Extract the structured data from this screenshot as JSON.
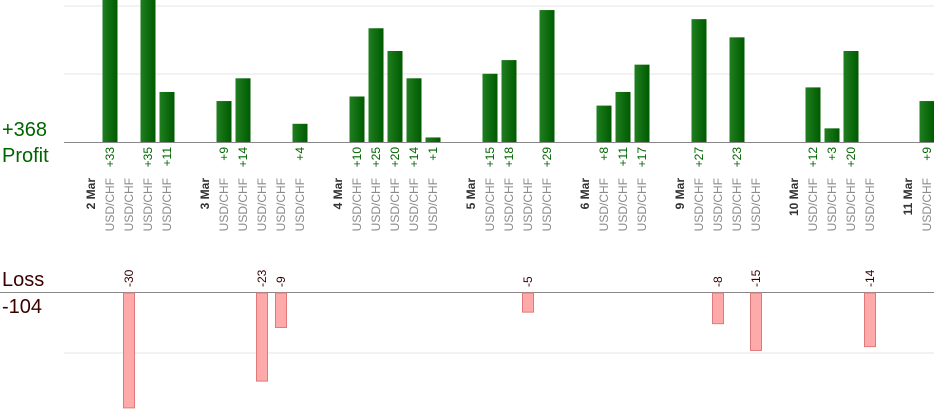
{
  "summary": {
    "profit_total": "+368",
    "profit_label": "Profit",
    "loss_label": "Loss",
    "loss_total": "-104"
  },
  "colors": {
    "profit_bar": "#0b6b0b",
    "profit_text": "#006400",
    "loss_bar": "#ffaaaa",
    "loss_bar_border": "#e07a7a",
    "loss_text": "#3a0000",
    "grid": "#e6e6e6",
    "axis": "#888888",
    "tick": "#8a8a8a",
    "date": "#333333"
  },
  "chart_data": {
    "type": "bar",
    "xlabel": "",
    "ylabel": "",
    "grid": true,
    "legend": "none",
    "profit_ylim": [
      0,
      30
    ],
    "loss_ylim": [
      -30,
      0
    ],
    "categories": [
      {
        "label": "2 Mar",
        "kind": "date"
      },
      {
        "label": "USD/CHF",
        "kind": "trade",
        "value": 33
      },
      {
        "label": "USD/CHF",
        "kind": "trade",
        "value": -30
      },
      {
        "label": "USD/CHF",
        "kind": "trade",
        "value": 35
      },
      {
        "label": "USD/CHF",
        "kind": "trade",
        "value": 11
      },
      {
        "label": "",
        "kind": "gap"
      },
      {
        "label": "3 Mar",
        "kind": "date"
      },
      {
        "label": "USD/CHF",
        "kind": "trade",
        "value": 9
      },
      {
        "label": "USD/CHF",
        "kind": "trade",
        "value": 14
      },
      {
        "label": "USD/CHF",
        "kind": "trade",
        "value": -23
      },
      {
        "label": "USD/CHF",
        "kind": "trade",
        "value": -9
      },
      {
        "label": "USD/CHF",
        "kind": "trade",
        "value": 4
      },
      {
        "label": "",
        "kind": "gap"
      },
      {
        "label": "4 Mar",
        "kind": "date"
      },
      {
        "label": "USD/CHF",
        "kind": "trade",
        "value": 10
      },
      {
        "label": "USD/CHF",
        "kind": "trade",
        "value": 25
      },
      {
        "label": "USD/CHF",
        "kind": "trade",
        "value": 20
      },
      {
        "label": "USD/CHF",
        "kind": "trade",
        "value": 14
      },
      {
        "label": "USD/CHF",
        "kind": "trade",
        "value": 1
      },
      {
        "label": "",
        "kind": "gap"
      },
      {
        "label": "5 Mar",
        "kind": "date"
      },
      {
        "label": "USD/CHF",
        "kind": "trade",
        "value": 15
      },
      {
        "label": "USD/CHF",
        "kind": "trade",
        "value": 18
      },
      {
        "label": "USD/CHF",
        "kind": "trade",
        "value": -5
      },
      {
        "label": "USD/CHF",
        "kind": "trade",
        "value": 29
      },
      {
        "label": "",
        "kind": "gap"
      },
      {
        "label": "6 Mar",
        "kind": "date"
      },
      {
        "label": "USD/CHF",
        "kind": "trade",
        "value": 8
      },
      {
        "label": "USD/CHF",
        "kind": "trade",
        "value": 11
      },
      {
        "label": "USD/CHF",
        "kind": "trade",
        "value": 17
      },
      {
        "label": "",
        "kind": "gap"
      },
      {
        "label": "9 Mar",
        "kind": "date"
      },
      {
        "label": "USD/CHF",
        "kind": "trade",
        "value": 27
      },
      {
        "label": "USD/CHF",
        "kind": "trade",
        "value": -8
      },
      {
        "label": "USD/CHF",
        "kind": "trade",
        "value": 23
      },
      {
        "label": "USD/CHF",
        "kind": "trade",
        "value": -15
      },
      {
        "label": "",
        "kind": "gap"
      },
      {
        "label": "10 Mar",
        "kind": "date"
      },
      {
        "label": "USD/CHF",
        "kind": "trade",
        "value": 12
      },
      {
        "label": "USD/CHF",
        "kind": "trade",
        "value": 3
      },
      {
        "label": "USD/CHF",
        "kind": "trade",
        "value": 20
      },
      {
        "label": "USD/CHF",
        "kind": "trade",
        "value": -14
      },
      {
        "label": "",
        "kind": "gap"
      },
      {
        "label": "11 Mar",
        "kind": "date"
      },
      {
        "label": "USD/CHF",
        "kind": "trade",
        "value": 9
      }
    ]
  }
}
